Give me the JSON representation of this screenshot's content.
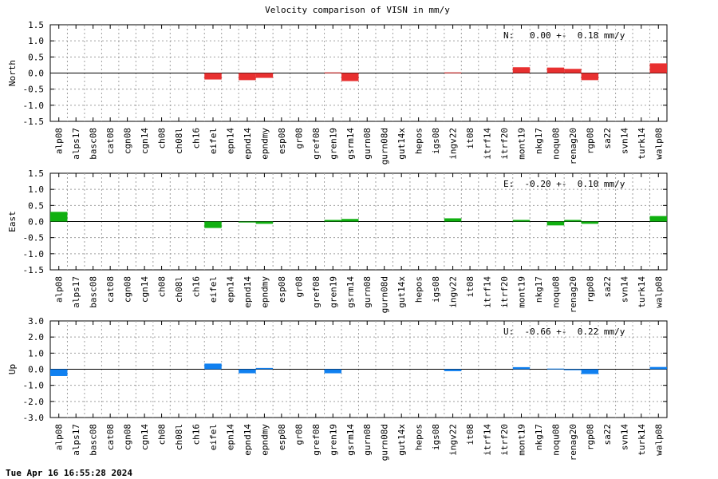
{
  "title": "Velocity comparison of VISN in mm/y",
  "timestamp": "Tue Apr 16 16:55:28 2024",
  "chart_data": [
    {
      "type": "bar",
      "ylabel": "North",
      "ylim": [
        -1.5,
        1.5
      ],
      "yticks": [
        -1.5,
        -1.0,
        -0.5,
        0.0,
        0.5,
        1.0,
        1.5
      ],
      "yticklabels": [
        "-1.5",
        "-1.0",
        "-0.5",
        "0.0",
        "0.5",
        "1.0",
        "1.5"
      ],
      "color": "#e83030",
      "annotation": "N:   0.00 +-  0.18 mm/y",
      "grid": true,
      "categories": [
        "alp08",
        "alps17",
        "basc08",
        "cat08",
        "cgn08",
        "cgn14",
        "ch08",
        "ch08l",
        "ch16",
        "eifel",
        "epn14",
        "epnd14",
        "epndmy",
        "esp08",
        "gr08",
        "gref08",
        "gren19",
        "gsrm14",
        "gurn08",
        "gurn08d",
        "gut14x",
        "hepos",
        "igs08",
        "ingv22",
        "it08",
        "itrf14",
        "itrf20",
        "mont19",
        "nkg17",
        "noqu08",
        "renag20",
        "rgp08",
        "sa22",
        "svn14",
        "turk14",
        "walp08"
      ],
      "values": [
        0,
        0,
        0,
        0,
        0,
        0,
        0,
        0,
        0,
        -0.2,
        0,
        -0.22,
        -0.15,
        0,
        0,
        0,
        0.02,
        -0.25,
        0,
        0,
        0,
        0,
        0,
        0.02,
        0,
        0,
        0,
        0.18,
        0,
        0.17,
        0.13,
        -0.22,
        0,
        0,
        0,
        0.3
      ]
    },
    {
      "type": "bar",
      "ylabel": "East",
      "ylim": [
        -1.5,
        1.5
      ],
      "yticks": [
        -1.5,
        -1.0,
        -0.5,
        0.0,
        0.5,
        1.0,
        1.5
      ],
      "yticklabels": [
        "-1.5",
        "-1.0",
        "-0.5",
        "0.0",
        "0.5",
        "1.0",
        "1.5"
      ],
      "color": "#10b010",
      "annotation": "E:  -0.20 +-  0.10 mm/y",
      "grid": true,
      "categories": [
        "alp08",
        "alps17",
        "basc08",
        "cat08",
        "cgn08",
        "cgn14",
        "ch08",
        "ch08l",
        "ch16",
        "eifel",
        "epn14",
        "epnd14",
        "epndmy",
        "esp08",
        "gr08",
        "gref08",
        "gren19",
        "gsrm14",
        "gurn08",
        "gurn08d",
        "gut14x",
        "hepos",
        "igs08",
        "ingv22",
        "it08",
        "itrf14",
        "itrf20",
        "mont19",
        "nkg17",
        "noqu08",
        "renag20",
        "rgp08",
        "sa22",
        "svn14",
        "turk14",
        "walp08"
      ],
      "values": [
        0.3,
        0,
        0,
        0,
        0,
        0,
        0,
        0,
        0,
        -0.2,
        0,
        -0.03,
        -0.07,
        0,
        0,
        0,
        0.05,
        0.08,
        0,
        0,
        0,
        0,
        0,
        0.1,
        0,
        0,
        0,
        0.05,
        0,
        -0.12,
        0.05,
        -0.07,
        0,
        0,
        0,
        0.17
      ]
    },
    {
      "type": "bar",
      "ylabel": "Up",
      "ylim": [
        -3.0,
        3.0
      ],
      "yticks": [
        -3.0,
        -2.0,
        -1.0,
        0.0,
        1.0,
        2.0,
        3.0
      ],
      "yticklabels": [
        "-3.0",
        "-2.0",
        "-1.0",
        "0.0",
        "1.0",
        "2.0",
        "3.0"
      ],
      "color": "#1080f0",
      "annotation": "U:  -0.66 +-  0.22 mm/y",
      "grid": true,
      "categories": [
        "alp08",
        "alps17",
        "basc08",
        "cat08",
        "cgn08",
        "cgn14",
        "ch08",
        "ch08l",
        "ch16",
        "eifel",
        "epn14",
        "epnd14",
        "epndmy",
        "esp08",
        "gr08",
        "gref08",
        "gren19",
        "gsrm14",
        "gurn08",
        "gurn08d",
        "gut14x",
        "hepos",
        "igs08",
        "ingv22",
        "it08",
        "itrf14",
        "itrf20",
        "mont19",
        "nkg17",
        "noqu08",
        "renag20",
        "rgp08",
        "sa22",
        "svn14",
        "turk14",
        "walp08"
      ],
      "values": [
        -0.42,
        0,
        0,
        0,
        0,
        0,
        0,
        0,
        0,
        0.35,
        0,
        -0.25,
        0.08,
        0,
        0,
        0,
        -0.25,
        0,
        0,
        0,
        0,
        0,
        0,
        -0.12,
        0,
        0,
        0,
        0.13,
        0,
        0.04,
        -0.06,
        -0.3,
        0,
        0,
        0,
        0.14
      ]
    }
  ]
}
